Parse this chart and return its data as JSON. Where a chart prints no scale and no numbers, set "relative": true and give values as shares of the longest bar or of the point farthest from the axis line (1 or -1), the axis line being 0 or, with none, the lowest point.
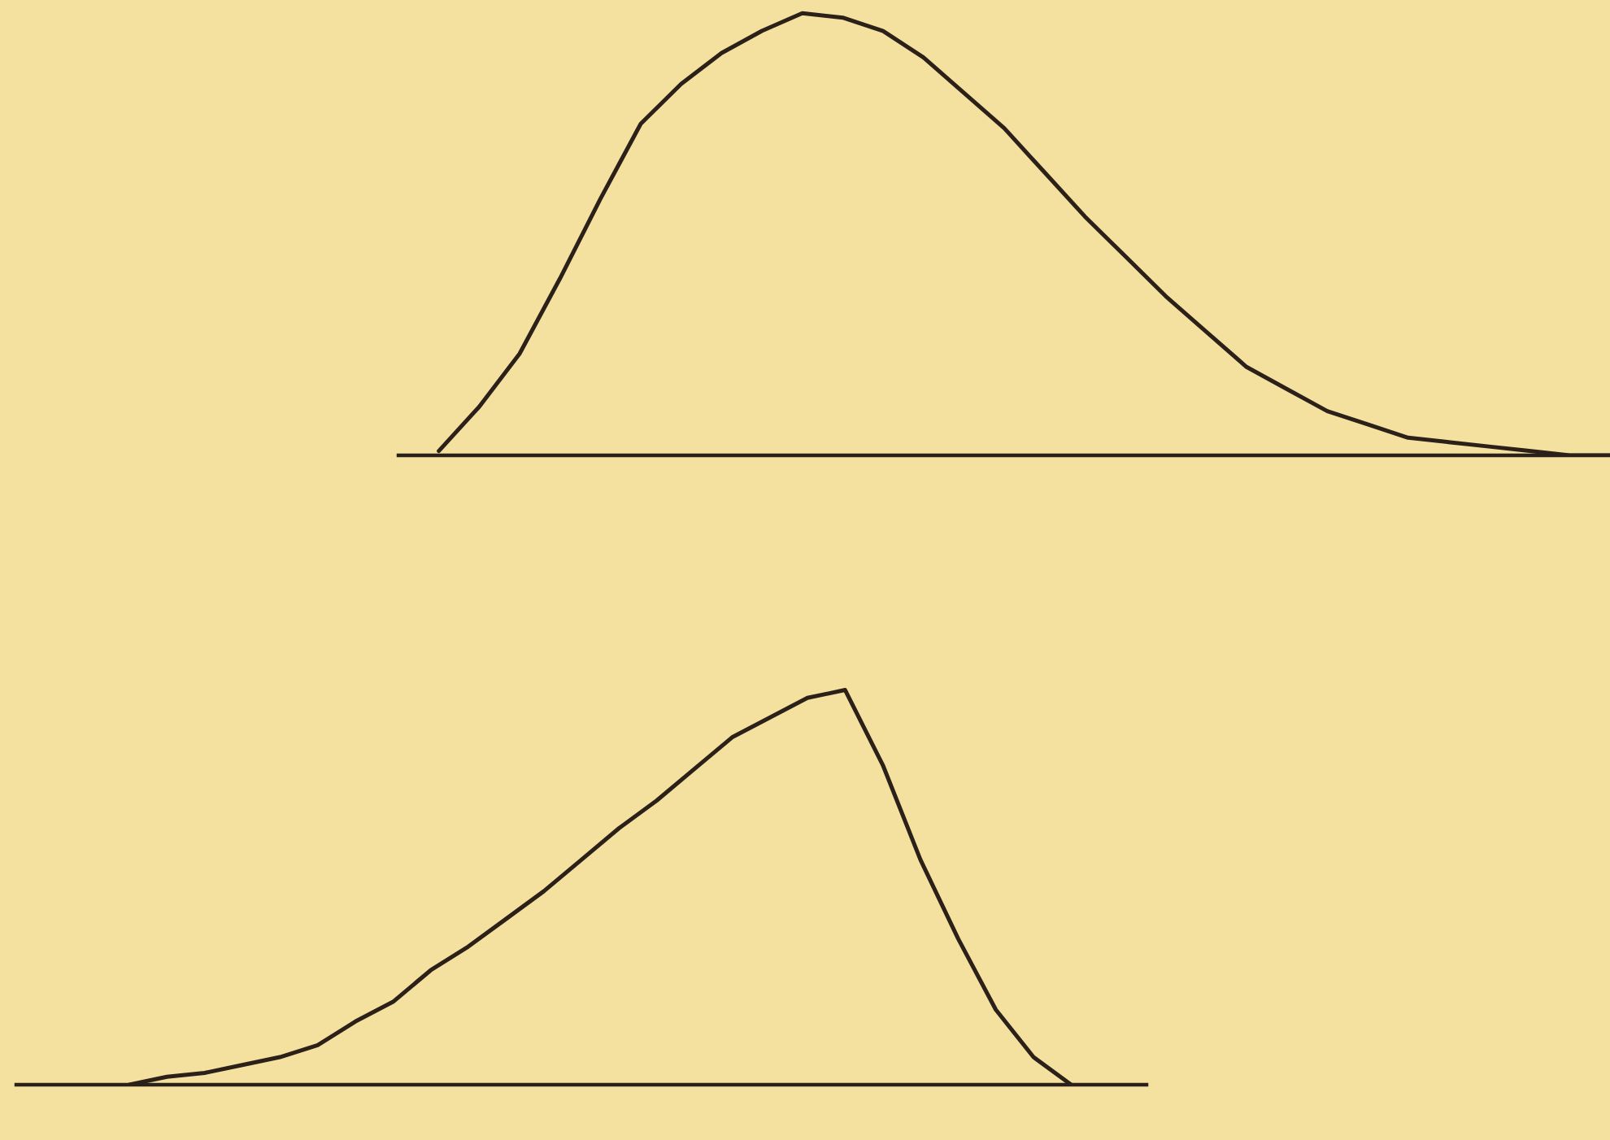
{
  "chart_data": [
    {
      "type": "line",
      "relative": true,
      "categories": [
        null,
        null,
        null,
        null,
        null,
        null,
        null,
        null,
        null,
        null,
        null,
        null,
        null,
        null,
        null,
        null,
        null,
        null,
        null,
        null,
        null,
        null,
        null,
        null,
        null,
        null,
        null,
        null,
        null,
        null,
        null
      ],
      "series": [
        {
          "color": "#2b2118",
          "values": [
            null,
            0.01,
            0.11,
            0.23,
            0.4,
            0.58,
            0.75,
            0.84,
            0.91,
            0.96,
            1.0,
            0.99,
            0.96,
            0.9,
            0.82,
            0.74,
            0.64,
            0.54,
            0.45,
            0.36,
            0.28,
            0.2,
            0.15,
            0.1,
            0.07,
            0.04,
            0.03,
            0.02,
            0.01,
            0.0,
            0.0
          ]
        }
      ]
    },
    {
      "type": "line",
      "relative": true,
      "categories": [
        null,
        null,
        null,
        null,
        null,
        null,
        null,
        null,
        null,
        null,
        null,
        null,
        null,
        null,
        null,
        null,
        null,
        null,
        null,
        null,
        null,
        null,
        null,
        null,
        null,
        null,
        null,
        null,
        null,
        null,
        null
      ],
      "series": [
        {
          "color": "#2b2118",
          "values": [
            null,
            null,
            null,
            0.0,
            0.02,
            0.03,
            0.05,
            0.07,
            0.1,
            0.16,
            0.21,
            0.29,
            0.35,
            0.42,
            0.49,
            0.57,
            0.65,
            0.72,
            0.8,
            0.88,
            0.93,
            0.98,
            1.0,
            0.81,
            0.57,
            0.37,
            0.19,
            0.07,
            0.0,
            null,
            null
          ]
        }
      ]
    }
  ]
}
